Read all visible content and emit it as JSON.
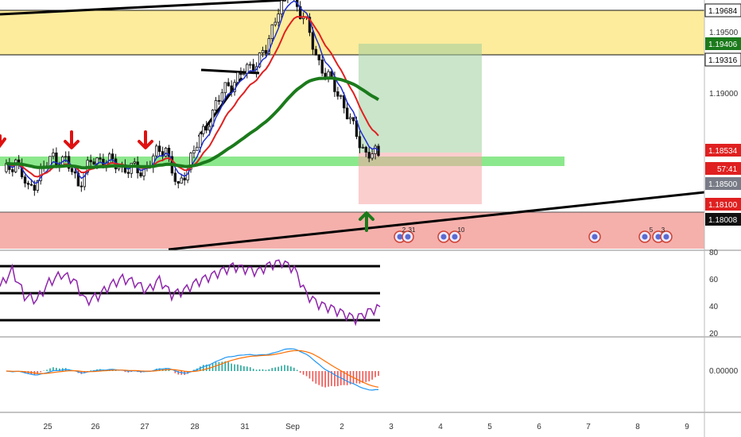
{
  "chart_data": [
    {
      "type": "candlestick",
      "panel": "price",
      "x_ticks": [
        "25",
        "26",
        "27",
        "28",
        "31",
        "Sep",
        "2",
        "3",
        "4",
        "5",
        "6",
        "7",
        "8",
        "9"
      ],
      "y_ticks": [
        "1.19500",
        "1.19000"
      ],
      "price_tags": [
        {
          "value": "1.19684",
          "color": "#ffffff",
          "text_color": "#000000"
        },
        {
          "value": "1.19406",
          "color": "#1b7a1b",
          "text_color": "#ffffff"
        },
        {
          "value": "1.19316",
          "color": "#ffffff",
          "text_color": "#000000"
        },
        {
          "value": "1.18534",
          "color": "#e02020",
          "text_color": "#ffffff"
        },
        {
          "value": "57:41",
          "color": "#e02020",
          "text_color": "#ffffff"
        },
        {
          "value": "1.18500",
          "color": "#787b86",
          "text_color": "#ffffff"
        },
        {
          "value": "1.18100",
          "color": "#e02020",
          "text_color": "#ffffff"
        },
        {
          "value": "1.18008",
          "color": "#111111",
          "text_color": "#ffffff"
        }
      ],
      "zones": {
        "resistance": [
          1.19316,
          1.19684
        ],
        "support": [
          1.177,
          1.181
        ],
        "entry": [
          1.185,
          1.1858
        ]
      },
      "series_close_approx": [
        1.1835,
        1.1848,
        1.1822,
        1.1838,
        1.185,
        1.1846,
        1.1829,
        1.1845,
        1.1849,
        1.1843,
        1.1841,
        1.1838,
        1.1849,
        1.1858,
        1.1822,
        1.1851,
        1.1869,
        1.1893,
        1.1908,
        1.1916,
        1.1925,
        1.1935,
        1.1972,
        1.1981,
        1.1964,
        1.1932,
        1.1913,
        1.1898,
        1.1872,
        1.1853,
        1.1851
      ],
      "ma_colors": [
        "#1f2ecc",
        "#e02020",
        "#1b7a1b"
      ],
      "calendar_markers": [
        "2",
        "31",
        "10",
        "5",
        "3"
      ]
    },
    {
      "type": "line",
      "panel": "rsi",
      "y_ticks": [
        "80",
        "60",
        "40",
        "20"
      ],
      "levels": [
        70,
        50,
        30
      ],
      "color": "#8e24aa",
      "values": [
        55,
        67,
        48,
        45,
        58,
        64,
        60,
        44,
        48,
        56,
        61,
        58,
        52,
        60,
        49,
        52,
        58,
        62,
        66,
        70,
        68,
        66,
        71,
        73,
        68,
        49,
        42,
        39,
        35,
        31,
        36,
        40
      ]
    },
    {
      "type": "macd",
      "panel": "macd",
      "y_ticks": [
        "0.00000"
      ],
      "macd_color": "#2196f3",
      "signal_color": "#ff6d00",
      "hist_pos": "#26a69a",
      "hist_neg": "#ef5350"
    }
  ]
}
